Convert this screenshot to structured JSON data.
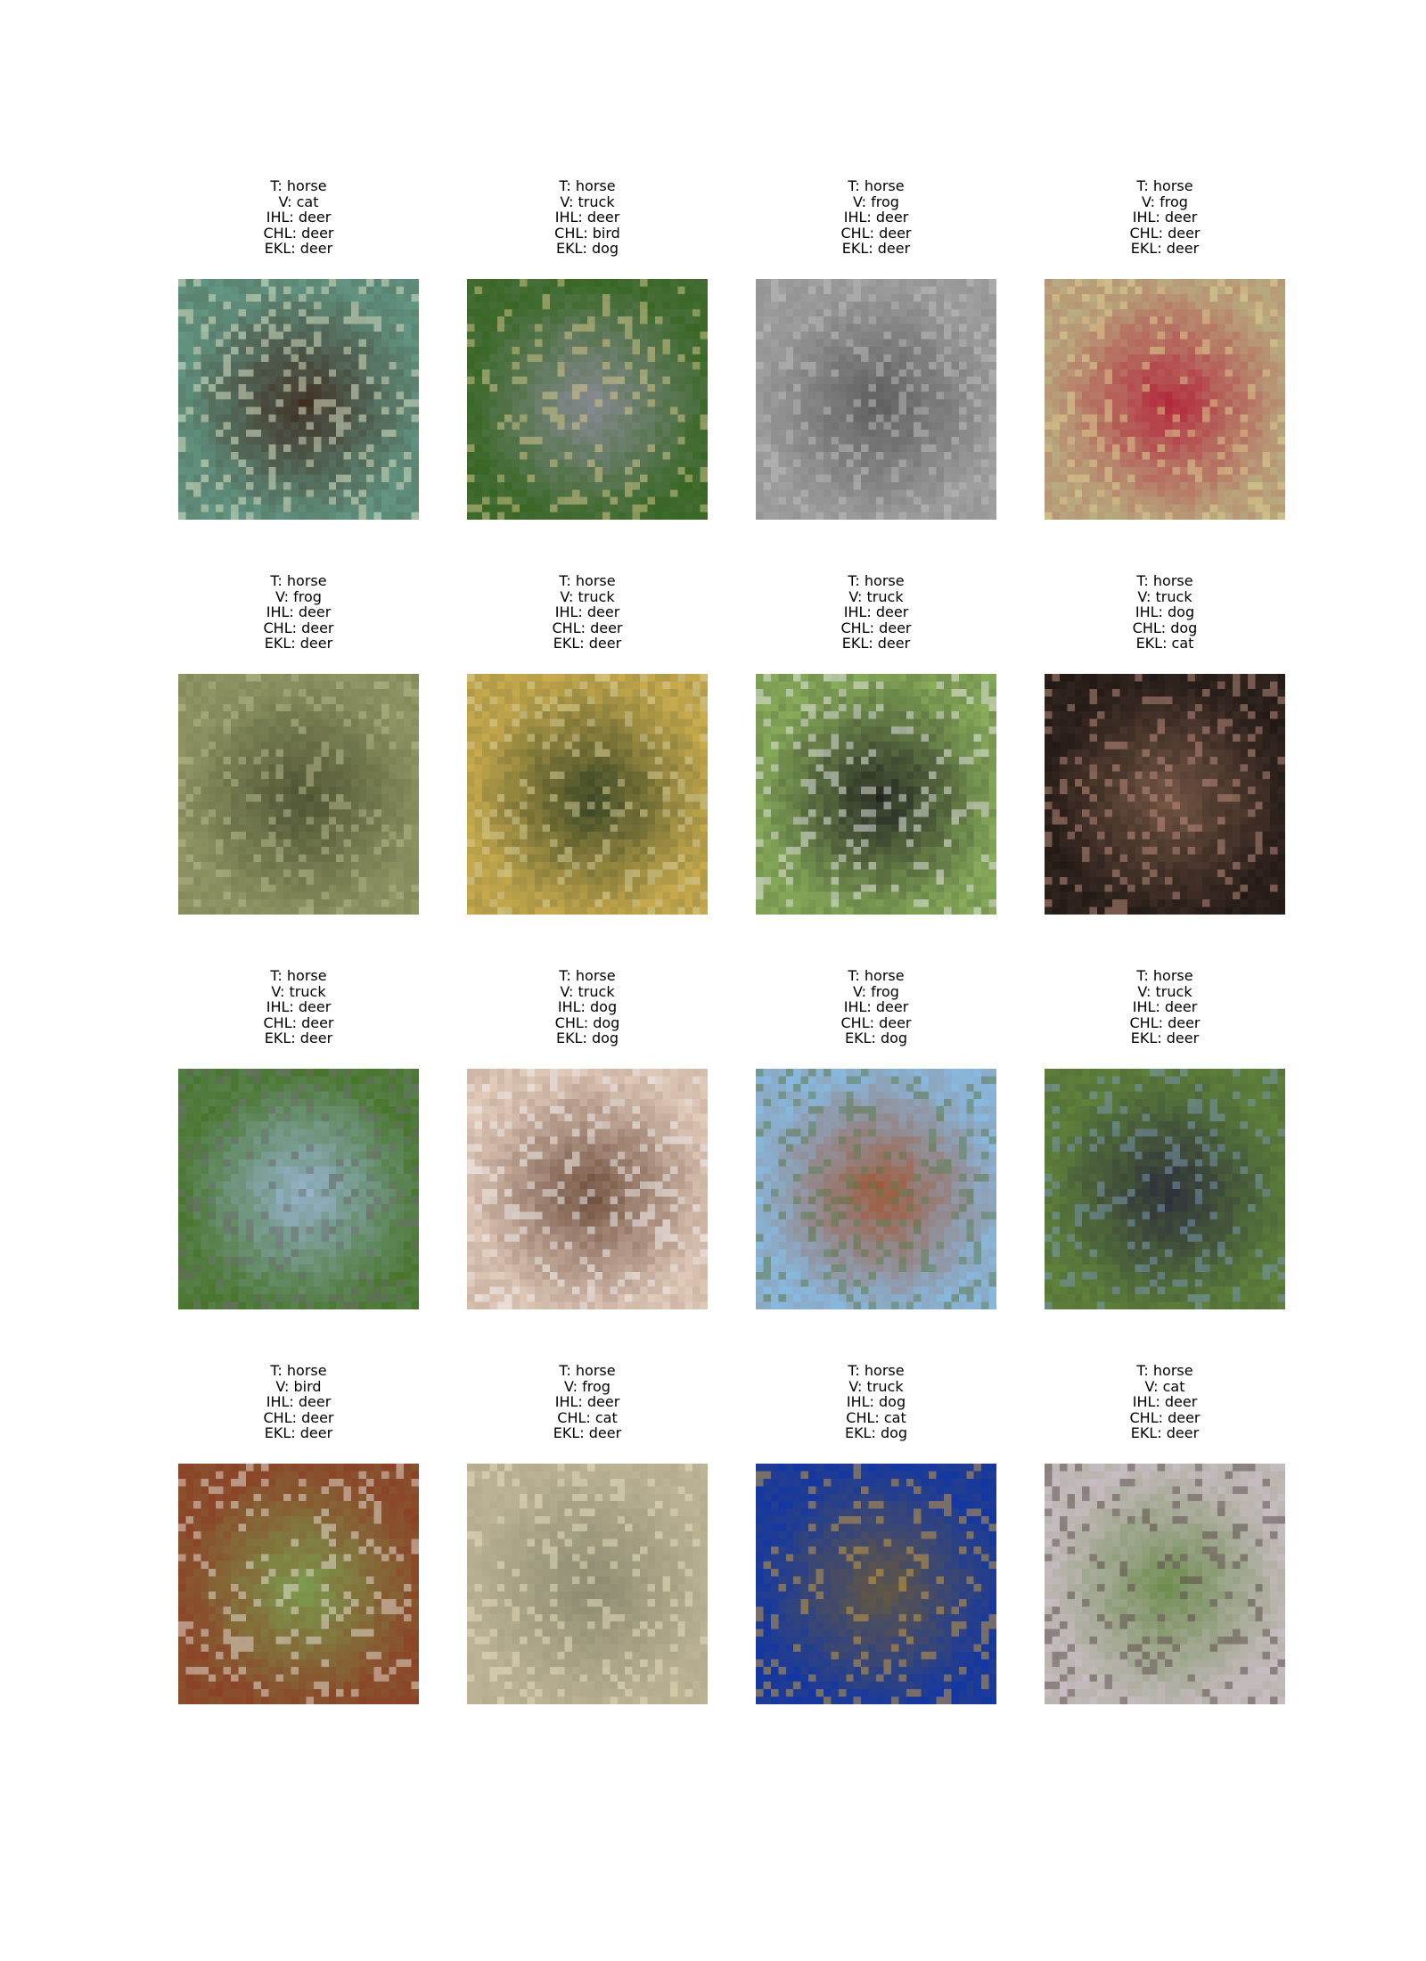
{
  "grid": {
    "rows": 4,
    "cols": 4,
    "cells": [
      {
        "t": "T: horse",
        "v": "V: cat",
        "ihl": "IHL: deer",
        "chl": "CHL: deer",
        "ekl": "EKL: deer",
        "image": "horse-front-on-grass",
        "colors": [
          "#5f8c7a",
          "#3e2a1f",
          "#dfe6c8"
        ]
      },
      {
        "t": "T: horse",
        "v": "V: truck",
        "ihl": "IHL: deer",
        "chl": "CHL: bird",
        "ekl": "EKL: dog",
        "image": "gray-horse-grazing",
        "colors": [
          "#3f6a2e",
          "#8d8d9a",
          "#d8c98a"
        ]
      },
      {
        "t": "T: horse",
        "v": "V: frog",
        "ihl": "IHL: deer",
        "chl": "CHL: deer",
        "ekl": "EKL: deer",
        "image": "grayscale-horses",
        "colors": [
          "#9a9a9a",
          "#5a5a5a",
          "#bdbdbd"
        ]
      },
      {
        "t": "T: horse",
        "v": "V: frog",
        "ihl": "IHL: deer",
        "chl": "CHL: deer",
        "ekl": "EKL: deer",
        "image": "red-horse-crowd",
        "colors": [
          "#b8a07a",
          "#b3233a",
          "#e0d090"
        ]
      },
      {
        "t": "T: horse",
        "v": "V: frog",
        "ihl": "IHL: deer",
        "chl": "CHL: deer",
        "ekl": "EKL: deer",
        "image": "field-blur",
        "colors": [
          "#8a9060",
          "#4a4f2f",
          "#b8bc90"
        ]
      },
      {
        "t": "T: horse",
        "v": "V: truck",
        "ihl": "IHL: deer",
        "chl": "CHL: deer",
        "ekl": "EKL: deer",
        "image": "hay-field",
        "colors": [
          "#bca24a",
          "#2f3f22",
          "#d8cf9a"
        ]
      },
      {
        "t": "T: horse",
        "v": "V: truck",
        "ihl": "IHL: deer",
        "chl": "CHL: deer",
        "ekl": "EKL: deer",
        "image": "horse-rider-meadow",
        "colors": [
          "#7fa055",
          "#1f1f1f",
          "#e8e8e8"
        ]
      },
      {
        "t": "T: horse",
        "v": "V: truck",
        "ihl": "IHL: dog",
        "chl": "CHL: dog",
        "ekl": "EKL: cat",
        "image": "dark-horse-portrait",
        "colors": [
          "#2a1f1a",
          "#7a5a48",
          "#c09080"
        ]
      },
      {
        "t": "T: horse",
        "v": "V: truck",
        "ihl": "IHL: deer",
        "chl": "CHL: deer",
        "ekl": "EKL: deer",
        "image": "horses-pasture",
        "colors": [
          "#4f7a3a",
          "#9ab8d8",
          "#6a6a6a"
        ]
      },
      {
        "t": "T: horse",
        "v": "V: truck",
        "ihl": "IHL: dog",
        "chl": "CHL: dog",
        "ekl": "EKL: dog",
        "image": "horse-in-stall",
        "colors": [
          "#d8c0b0",
          "#6a4a38",
          "#f0f0f0"
        ]
      },
      {
        "t": "T: horse",
        "v": "V: frog",
        "ihl": "IHL: deer",
        "chl": "CHL: deer",
        "ekl": "EKL: dog",
        "image": "rider-on-horse",
        "colors": [
          "#8ab0d0",
          "#a0522d",
          "#5a7a4a"
        ]
      },
      {
        "t": "T: horse",
        "v": "V: truck",
        "ihl": "IHL: deer",
        "chl": "CHL: deer",
        "ekl": "EKL: deer",
        "image": "jockey-dark-horse",
        "colors": [
          "#5a7a3a",
          "#2a2a3a",
          "#7a9ab8"
        ]
      },
      {
        "t": "T: horse",
        "v": "V: bird",
        "ihl": "IHL: deer",
        "chl": "CHL: deer",
        "ekl": "EKL: deer",
        "image": "horse-head-closeup",
        "colors": [
          "#8a4a2a",
          "#7aa050",
          "#e8e0d8"
        ]
      },
      {
        "t": "T: horse",
        "v": "V: frog",
        "ihl": "IHL: deer",
        "chl": "CHL: cat",
        "ekl": "EKL: deer",
        "image": "beige-blur",
        "colors": [
          "#b8b090",
          "#8a8870",
          "#e8e0c0"
        ]
      },
      {
        "t": "T: horse",
        "v": "V: truck",
        "ihl": "IHL: dog",
        "chl": "CHL: cat",
        "ekl": "EKL: dog",
        "image": "horse-blue-blanket",
        "colors": [
          "#1a3a9a",
          "#6a5a3a",
          "#d0a040"
        ]
      },
      {
        "t": "T: horse",
        "v": "V: cat",
        "ihl": "IHL: deer",
        "chl": "CHL: deer",
        "ekl": "EKL: deer",
        "image": "white-horse-closeup",
        "colors": [
          "#c0b8b8",
          "#6a8a4a",
          "#5a4a48"
        ]
      }
    ]
  }
}
